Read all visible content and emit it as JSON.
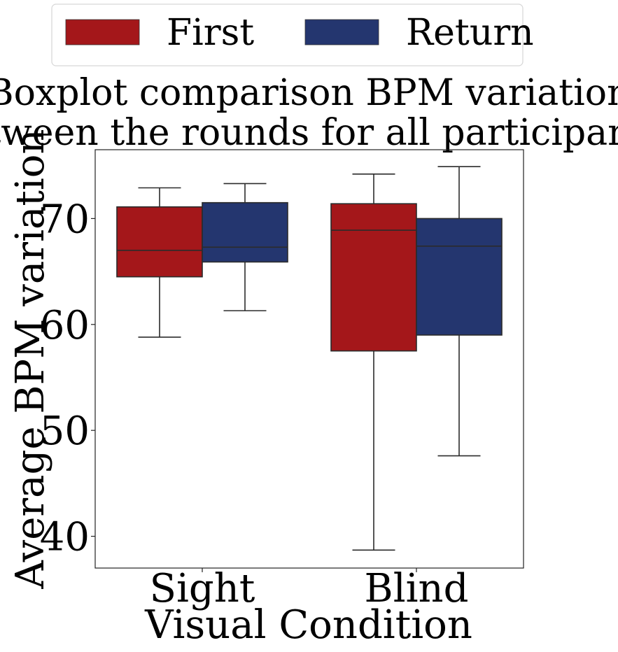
{
  "chart_data": {
    "type": "boxplot",
    "title_lines": [
      "Boxplot comparison BPM variation",
      "between the rounds for all participants."
    ],
    "xlabel": "Visual Condition",
    "ylabel": "Average BPM variation",
    "categories": [
      "Sight",
      "Blind"
    ],
    "ylim": [
      37,
      76.5
    ],
    "yticks": [
      40,
      50,
      60,
      70
    ],
    "grid": false,
    "legend_position": "top",
    "series": [
      {
        "name": "First",
        "color": "#a4171a",
        "boxes": [
          {
            "category": "Sight",
            "whisker_low": 58.8,
            "q1": 64.5,
            "median": 67.0,
            "q3": 71.1,
            "whisker_high": 72.9
          },
          {
            "category": "Blind",
            "whisker_low": 38.7,
            "q1": 57.5,
            "median": 68.9,
            "q3": 71.4,
            "whisker_high": 74.2
          }
        ]
      },
      {
        "name": "Return",
        "color": "#24366f",
        "boxes": [
          {
            "category": "Sight",
            "whisker_low": 61.3,
            "q1": 65.9,
            "median": 67.3,
            "q3": 71.5,
            "whisker_high": 73.3
          },
          {
            "category": "Blind",
            "whisker_low": 47.6,
            "q1": 59.0,
            "median": 67.4,
            "q3": 70.0,
            "whisker_high": 74.9
          }
        ]
      }
    ]
  }
}
